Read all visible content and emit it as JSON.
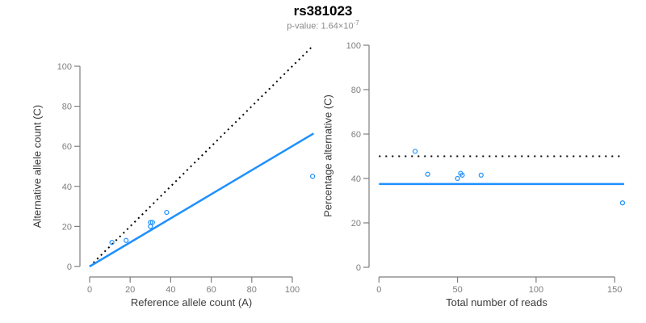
{
  "header": {
    "title": "rs381023",
    "subtitle_base": "p-value: 1.64×10",
    "subtitle_exponent": "-7"
  },
  "colors": {
    "accent_blue": "#1e90ff",
    "identity_black": "#000000",
    "axis_gray": "#7e7e7e",
    "tick_label_gray": "#7e7e7e",
    "axis_title_gray": "#3c3c3c",
    "subtitle_gray": "#8a8a8a"
  },
  "chart_data": [
    {
      "type": "scatter",
      "title": "",
      "xlabel": "Reference allele count (A)",
      "ylabel": "Alternative allele count (C)",
      "xticks": [
        0,
        20,
        40,
        60,
        80,
        100
      ],
      "yticks": [
        0,
        20,
        40,
        60,
        80,
        100
      ],
      "xlim": [
        0,
        112
      ],
      "ylim": [
        0,
        112
      ],
      "grid": false,
      "legend": "none",
      "point_color": "#1e90ff",
      "points": [
        [
          11,
          12
        ],
        [
          18,
          13
        ],
        [
          30,
          20
        ],
        [
          30,
          22
        ],
        [
          31,
          22
        ],
        [
          38,
          27
        ],
        [
          110,
          45
        ]
      ],
      "lines": [
        {
          "name": "identity-line",
          "style": "dotted",
          "color": "#000000",
          "from": [
            0,
            0
          ],
          "to": [
            110,
            110
          ]
        },
        {
          "name": "fitted-ratio-line",
          "style": "solid",
          "color": "#1e90ff",
          "from": [
            0,
            0
          ],
          "to": [
            110.5,
            66.4
          ]
        }
      ]
    },
    {
      "type": "scatter",
      "title": "",
      "xlabel": "Total number of reads",
      "ylabel": "Percentage alternative (C)",
      "xticks": [
        0,
        50,
        100,
        150
      ],
      "yticks": [
        0,
        20,
        40,
        60,
        80,
        100
      ],
      "xlim": [
        0,
        158
      ],
      "ylim": [
        0,
        104
      ],
      "grid": false,
      "legend": "none",
      "point_color": "#1e90ff",
      "points": [
        [
          23,
          52.2
        ],
        [
          31,
          41.9
        ],
        [
          50,
          40.0
        ],
        [
          52,
          42.3
        ],
        [
          53,
          41.5
        ],
        [
          65,
          41.5
        ],
        [
          155,
          29.0
        ]
      ],
      "lines": [
        {
          "name": "expected-50pct-line",
          "style": "dotted",
          "color": "#000000",
          "from": [
            0,
            50
          ],
          "to": [
            156,
            50
          ]
        },
        {
          "name": "observed-37.5pct-line",
          "style": "solid",
          "color": "#1e90ff",
          "from": [
            0,
            37.5
          ],
          "to": [
            156,
            37.5
          ]
        }
      ]
    }
  ]
}
